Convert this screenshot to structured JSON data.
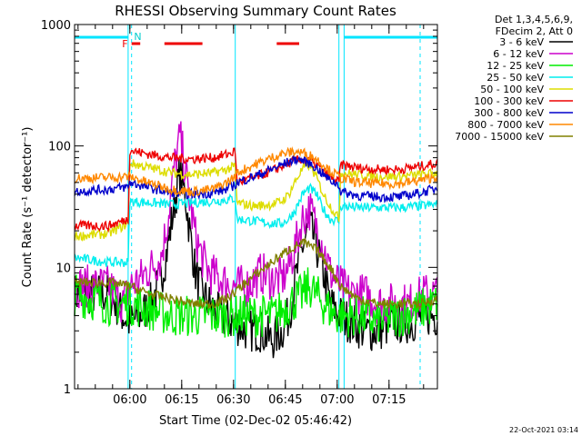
{
  "chart_data": {
    "type": "line",
    "title": "RHESSI Observing Summary Count Rates",
    "xlabel": "Start Time (02-Dec-02 05:46:42)",
    "ylabel": "Count Rate (s⁻¹ detector⁻¹)",
    "yscale": "log",
    "ylim": [
      1,
      1000
    ],
    "xlim_minutes": [
      -2,
      103
    ],
    "x_ticks": [
      {
        "m": 14,
        "label": "06:00"
      },
      {
        "m": 29,
        "label": "06:15"
      },
      {
        "m": 44,
        "label": "06:30"
      },
      {
        "m": 59,
        "label": "06:45"
      },
      {
        "m": 74,
        "label": "07:00"
      },
      {
        "m": 89,
        "label": "07:15"
      }
    ],
    "y_ticks": [
      {
        "v": 1,
        "label": "1"
      },
      {
        "v": 10,
        "label": "10"
      },
      {
        "v": 100,
        "label": "100"
      },
      {
        "v": 1000,
        "label": "1000"
      }
    ],
    "legend_header": [
      "Det 1,3,4,5,6,9,",
      "FDecim 2, Att 0"
    ],
    "legend_position": "right",
    "series": [
      {
        "name": "3 - 6 keV",
        "color": "#000000",
        "x": [
          -2,
          8,
          10,
          12,
          14,
          17,
          20,
          23,
          25,
          27,
          28.5,
          30,
          31.5,
          33,
          35,
          37,
          40,
          44,
          48,
          52,
          55,
          58,
          60,
          62,
          64,
          66,
          68,
          70,
          72,
          75,
          78,
          82,
          86,
          90,
          95,
          99,
          103
        ],
        "y": [
          6,
          6,
          5,
          4,
          3.5,
          4,
          5,
          8,
          15,
          35,
          60,
          40,
          18,
          9,
          6,
          5,
          4,
          3.5,
          3,
          3,
          2.5,
          3,
          4,
          8,
          15,
          22,
          15,
          9,
          5,
          4,
          3.5,
          3,
          3,
          3.5,
          3.5,
          4,
          4
        ]
      },
      {
        "name": "6 - 12 keV",
        "color": "#cc00cc",
        "x": [
          -2,
          8,
          10,
          12,
          14,
          17,
          20,
          23,
          25,
          27,
          28.5,
          29.5,
          31,
          33,
          35,
          37,
          40,
          44,
          48,
          52,
          55,
          58,
          60,
          62,
          64,
          66,
          68,
          70,
          72,
          75,
          78,
          82,
          86,
          90,
          95,
          99,
          103
        ],
        "y": [
          7,
          7,
          6,
          5,
          7,
          8,
          10,
          12,
          25,
          70,
          120,
          80,
          40,
          18,
          12,
          9,
          8,
          7,
          7,
          9,
          8,
          8,
          10,
          15,
          25,
          30,
          22,
          15,
          9,
          7,
          6,
          6,
          5,
          5,
          5,
          6,
          6
        ]
      },
      {
        "name": "12 - 25 keV",
        "color": "#00ee00",
        "x": [
          -2,
          8,
          14,
          20,
          26,
          32,
          38,
          44,
          50,
          56,
          60,
          64,
          66,
          70,
          74,
          80,
          86,
          92,
          98,
          103
        ],
        "y": [
          6,
          5,
          5,
          4.5,
          4,
          4,
          4,
          4,
          4,
          4,
          5,
          6,
          7,
          5,
          4,
          4,
          3.5,
          4,
          4.5,
          5
        ]
      },
      {
        "name": "25 - 50 keV",
        "color": "#00eeee",
        "x": [
          -2,
          8,
          13.5,
          14,
          20,
          26,
          32,
          38,
          42,
          44.5,
          45,
          50,
          55,
          58,
          60,
          62,
          64,
          66,
          68,
          70,
          72,
          74.5,
          75,
          80,
          86,
          92,
          98,
          103
        ],
        "y": [
          12,
          11,
          11,
          35,
          34,
          33,
          34,
          35,
          36,
          37,
          25,
          24,
          23,
          23,
          25,
          30,
          40,
          45,
          40,
          30,
          25,
          24,
          32,
          31,
          31,
          31,
          32,
          33
        ]
      },
      {
        "name": "50 - 100 keV",
        "color": "#dddd00",
        "x": [
          -2,
          8,
          13.5,
          14,
          20,
          26,
          32,
          38,
          42,
          44.5,
          45,
          50,
          55,
          58,
          60,
          62,
          64,
          66,
          68,
          70,
          72,
          74.5,
          75,
          80,
          86,
          92,
          98,
          103
        ],
        "y": [
          18,
          19,
          23,
          72,
          66,
          60,
          58,
          60,
          64,
          68,
          34,
          32,
          33,
          35,
          40,
          52,
          65,
          70,
          55,
          40,
          32,
          25,
          60,
          58,
          56,
          56,
          58,
          60
        ]
      },
      {
        "name": "100 - 300 keV",
        "color": "#ee0000",
        "x": [
          -2,
          8,
          13.5,
          14,
          20,
          26,
          32,
          38,
          42,
          44.5,
          45,
          50,
          55,
          58,
          60,
          62,
          64,
          66,
          68,
          70,
          72,
          74.5,
          75,
          80,
          86,
          92,
          98,
          103
        ],
        "y": [
          22,
          22,
          25,
          92,
          85,
          80,
          78,
          80,
          85,
          90,
          50,
          55,
          62,
          68,
          72,
          76,
          78,
          75,
          70,
          62,
          55,
          50,
          70,
          66,
          64,
          64,
          68,
          72
        ]
      },
      {
        "name": "300 - 800 keV",
        "color": "#0000cc",
        "x": [
          -2,
          8,
          13.5,
          14,
          20,
          26,
          32,
          38,
          42,
          44.5,
          45,
          50,
          55,
          58,
          60,
          62,
          64,
          66,
          68,
          70,
          72,
          74.5,
          75,
          80,
          86,
          92,
          98,
          103
        ],
        "y": [
          42,
          44,
          46,
          50,
          45,
          41,
          40,
          41,
          44,
          48,
          50,
          56,
          64,
          70,
          74,
          78,
          76,
          72,
          66,
          58,
          52,
          48,
          42,
          39,
          38,
          38,
          41,
          45
        ]
      },
      {
        "name": "800 - 7000 keV",
        "color": "#ff8800",
        "x": [
          -2,
          8,
          13.5,
          14,
          20,
          26,
          32,
          38,
          42,
          44.5,
          45,
          50,
          55,
          58,
          60,
          62,
          64,
          66,
          68,
          70,
          72,
          74.5,
          75,
          80,
          86,
          92,
          98,
          103
        ],
        "y": [
          54,
          55,
          56,
          56,
          49,
          44,
          42,
          44,
          50,
          56,
          60,
          70,
          80,
          86,
          88,
          90,
          88,
          84,
          78,
          70,
          62,
          56,
          54,
          50,
          49,
          49,
          52,
          56
        ]
      },
      {
        "name": "7000 - 15000 keV",
        "color": "#808000",
        "x": [
          -2,
          8,
          14,
          20,
          26,
          32,
          38,
          42,
          45,
          50,
          55,
          60,
          64,
          68,
          72,
          75,
          80,
          86,
          92,
          98,
          103
        ],
        "y": [
          7.5,
          7.5,
          7,
          6,
          5.5,
          5,
          5,
          5.5,
          6.5,
          8.5,
          11,
          14,
          16,
          14,
          10,
          7,
          5.5,
          5,
          5,
          5,
          5.5
        ]
      }
    ],
    "status_bars": [
      {
        "label": "",
        "color": "#00e5ff",
        "segments": [
          [
            -2,
            13.5
          ],
          [
            76,
            103
          ]
        ]
      },
      {
        "label": "F",
        "color": "#ee0000",
        "segments": [
          [
            14.5,
            17
          ],
          [
            24,
            35
          ],
          [
            56.5,
            63
          ]
        ]
      },
      {
        "label": "N",
        "color": "#00cccc",
        "segments": []
      }
    ],
    "vlines": [
      {
        "m": 13.5,
        "style": "solid",
        "color": "#00e5ff"
      },
      {
        "m": 14.5,
        "style": "dashed",
        "color": "#00e5ff"
      },
      {
        "m": 44.5,
        "style": "solid",
        "color": "#00e5ff"
      },
      {
        "m": 74.5,
        "style": "solid",
        "color": "#00e5ff"
      },
      {
        "m": 76,
        "style": "solid",
        "color": "#00e5ff"
      },
      {
        "m": 98,
        "style": "dashed",
        "color": "#00e5ff"
      }
    ]
  },
  "footer_timestamp": "22-Oct-2021 03:14"
}
